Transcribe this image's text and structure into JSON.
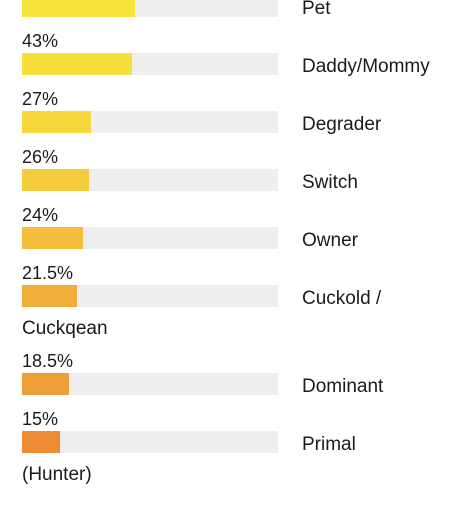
{
  "chart_data": {
    "type": "bar",
    "categories": [
      "Pet",
      "Daddy/Mommy",
      "Degrader",
      "Switch",
      "Owner",
      "Cuckold /\nCuckqean",
      "Dominant",
      "Primal\n(Hunter)"
    ],
    "values": [
      44,
      43,
      27,
      26,
      24,
      21.5,
      18.5,
      15
    ],
    "value_labels": [
      null,
      "43%",
      "27%",
      "26%",
      "24%",
      "21.5%",
      "18.5%",
      "15%"
    ],
    "colors": [
      "#f6e43b",
      "#f5e03c",
      "#f5d63c",
      "#f4cb3c",
      "#f2be3c",
      "#f0ae3a",
      "#ee9e38",
      "#ed8b36"
    ],
    "xlim": [
      0,
      100
    ]
  }
}
